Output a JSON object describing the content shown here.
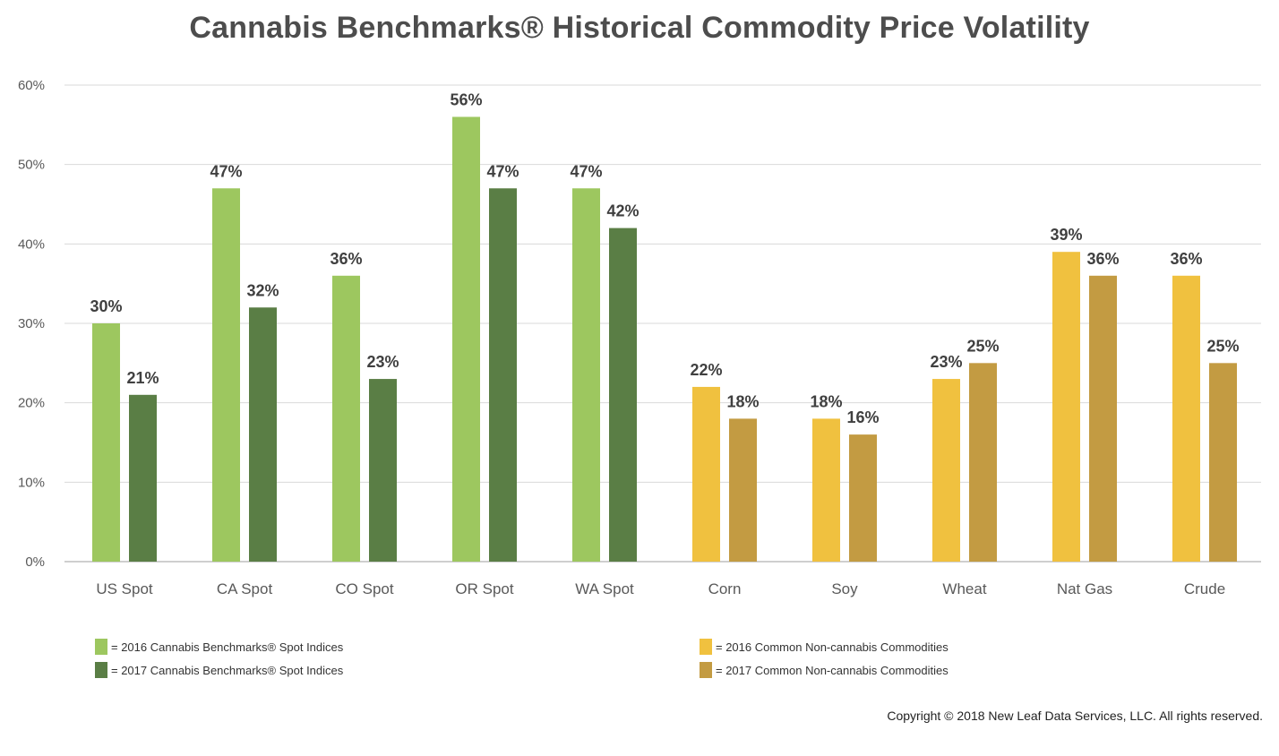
{
  "chart_data": {
    "type": "bar",
    "title": "Cannabis Benchmarks® Historical Commodity Price Volatility",
    "categories": [
      "US Spot",
      "CA Spot",
      "CO Spot",
      "OR Spot",
      "WA Spot",
      "Corn",
      "Soy",
      "Wheat",
      "Nat Gas",
      "Crude"
    ],
    "values_2016": [
      30,
      47,
      36,
      56,
      47,
      22,
      18,
      23,
      39,
      36
    ],
    "values_2017": [
      21,
      32,
      23,
      47,
      42,
      18,
      16,
      25,
      36,
      25
    ],
    "data_labels_2016": [
      "30%",
      "47%",
      "36%",
      "56%",
      "47%",
      "22%",
      "18%",
      "23%",
      "39%",
      "36%"
    ],
    "data_labels_2017": [
      "21%",
      "32%",
      "23%",
      "47%",
      "42%",
      "18%",
      "16%",
      "25%",
      "36%",
      "25%"
    ],
    "ylim": [
      0,
      60
    ],
    "ytick_values": [
      0,
      10,
      20,
      30,
      40,
      50,
      60
    ],
    "ytick_labels": [
      "0%",
      "10%",
      "20%",
      "30%",
      "40%",
      "50%",
      "60%"
    ],
    "grid": true,
    "groups": {
      "cannabis": {
        "categories": [
          "US Spot",
          "CA Spot",
          "CO Spot",
          "OR Spot",
          "WA Spot"
        ],
        "color_2016": "#9dc75f",
        "color_2017": "#5a7e45"
      },
      "commodities": {
        "categories": [
          "Corn",
          "Soy",
          "Wheat",
          "Nat Gas",
          "Crude"
        ],
        "color_2016": "#f0c13f",
        "color_2017": "#c39b42"
      }
    },
    "legend": {
      "placement": "bottom",
      "entries": [
        {
          "label": "= 2016 Cannabis Benchmarks® Spot Indices",
          "color": "#9dc75f"
        },
        {
          "label": "= 2017 Cannabis Benchmarks® Spot Indices",
          "color": "#5a7e45"
        },
        {
          "label": "= 2016 Common Non-cannabis Commodities",
          "color": "#f0c13f"
        },
        {
          "label": "= 2017 Common Non-cannabis Commodities",
          "color": "#c39b42"
        }
      ]
    }
  },
  "copyright": "Copyright © 2018 New Leaf Data Services, LLC. All rights reserved."
}
